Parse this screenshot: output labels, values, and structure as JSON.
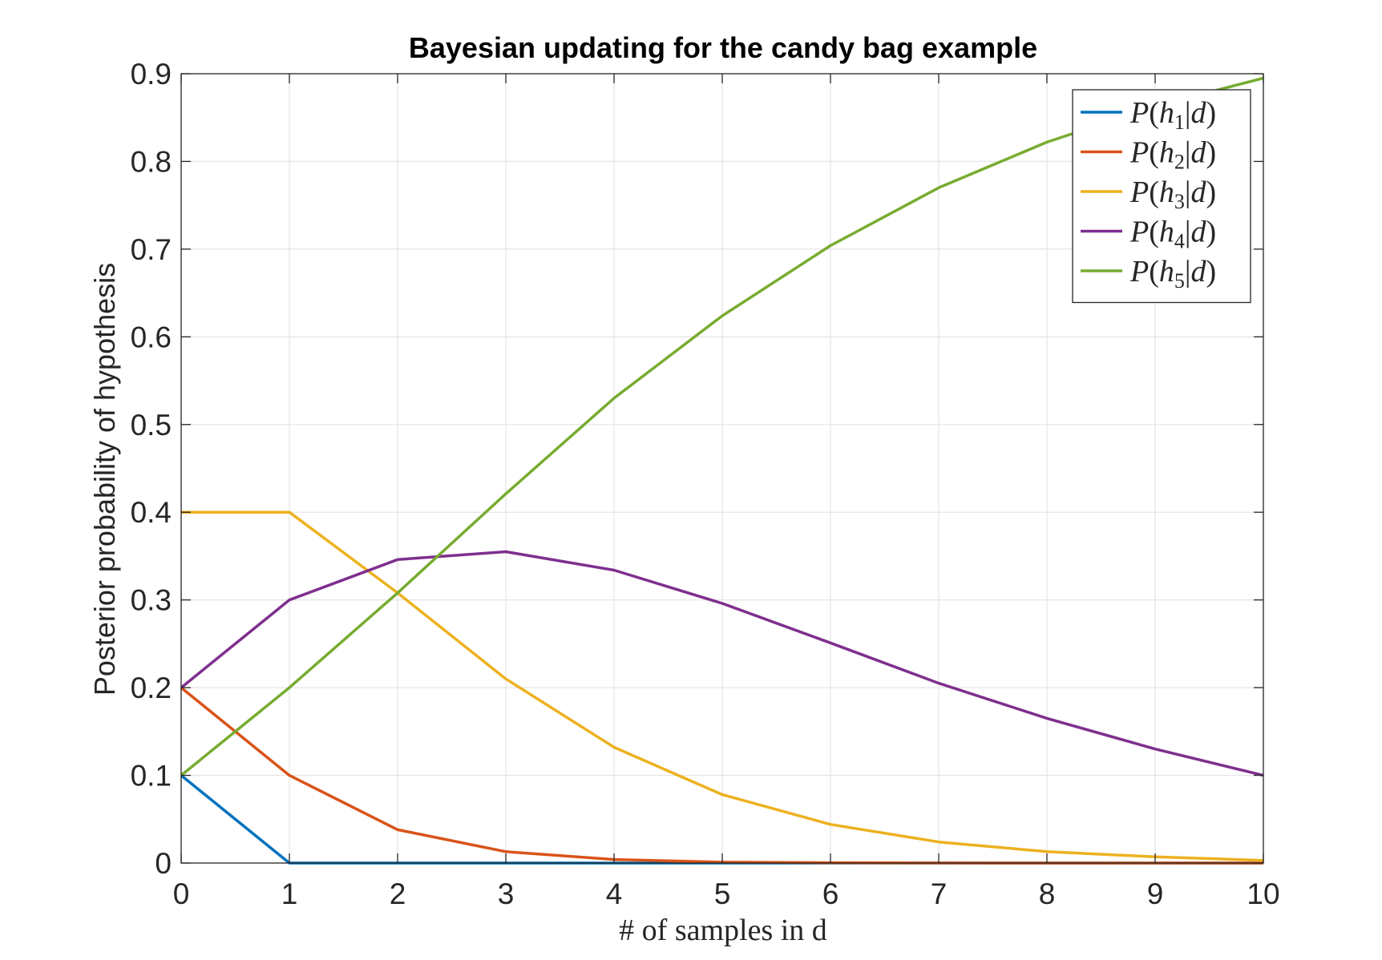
{
  "chart_data": {
    "type": "line",
    "title": "Bayesian updating for the candy bag example",
    "xlabel": "# of samples in d",
    "ylabel": "Posterior probability of hypothesis",
    "xlim": [
      0,
      10
    ],
    "ylim": [
      0,
      0.9
    ],
    "xticks": [
      "0",
      "1",
      "2",
      "3",
      "4",
      "5",
      "6",
      "7",
      "8",
      "9",
      "10"
    ],
    "yticks": [
      "0",
      "0.1",
      "0.2",
      "0.3",
      "0.4",
      "0.5",
      "0.6",
      "0.7",
      "0.8",
      "0.9"
    ],
    "grid": true,
    "legend_position": "top-right",
    "x": [
      0,
      1,
      2,
      3,
      4,
      5,
      6,
      7,
      8,
      9,
      10
    ],
    "series": [
      {
        "name": "P(h1|d)",
        "sub": "1",
        "color": "#0072BD",
        "values": [
          0.1,
          0,
          0,
          0,
          0,
          0,
          0,
          0,
          0,
          0,
          0
        ]
      },
      {
        "name": "P(h2|d)",
        "sub": "2",
        "color": "#D95319",
        "values": [
          0.2,
          0.1,
          0.038,
          0.013,
          0.004,
          0.001,
          0.0004,
          0.0001,
          0,
          0,
          0
        ]
      },
      {
        "name": "P(h3|d)",
        "sub": "3",
        "color": "#EDB120",
        "values": [
          0.4,
          0.4,
          0.308,
          0.21,
          0.132,
          0.078,
          0.044,
          0.024,
          0.013,
          0.007,
          0.003
        ]
      },
      {
        "name": "P(h4|d)",
        "sub": "4",
        "color": "#7E2F8E",
        "values": [
          0.2,
          0.3,
          0.346,
          0.355,
          0.334,
          0.296,
          0.251,
          0.205,
          0.165,
          0.13,
          0.1
        ]
      },
      {
        "name": "P(h5|d)",
        "sub": "5",
        "color": "#77AC30",
        "values": [
          0.1,
          0.2,
          0.308,
          0.421,
          0.53,
          0.624,
          0.704,
          0.77,
          0.822,
          0.863,
          0.895
        ]
      }
    ]
  }
}
